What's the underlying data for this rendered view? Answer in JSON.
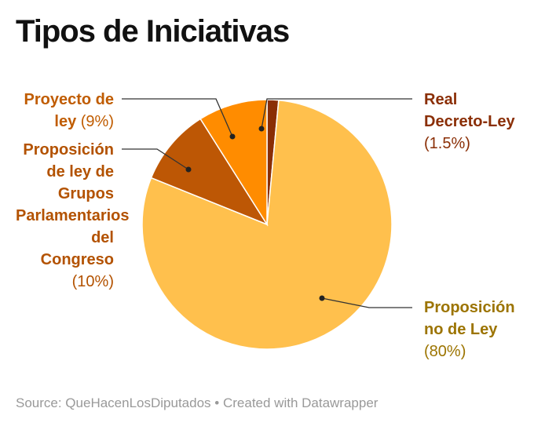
{
  "title": "Tipos de Iniciativas",
  "footer": {
    "source": "Source: QueHacenLosDiputados",
    "separator": "•",
    "credit": "Created with Datawrapper"
  },
  "chart_data": {
    "type": "pie",
    "title": "Tipos de Iniciativas",
    "slices": [
      {
        "label": "Real Decreto-Ley",
        "value": 1.5,
        "display": "(1.5%)",
        "color": "#8a2e05",
        "label_color": "#8a2e05"
      },
      {
        "label": "Proposición no de Ley",
        "value": 80,
        "display": "(80%)",
        "color": "#ffc04d",
        "label_color": "#9c7400"
      },
      {
        "label": "Proposición de ley de Grupos Parlamentarios del Congreso",
        "value": 10,
        "display": "(10%)",
        "color": "#bd5705",
        "label_color": "#b35200"
      },
      {
        "label": "Proyecto de ley",
        "value": 9,
        "display": "(9%)",
        "color": "#ff8c00",
        "label_color": "#c05c00"
      }
    ]
  }
}
